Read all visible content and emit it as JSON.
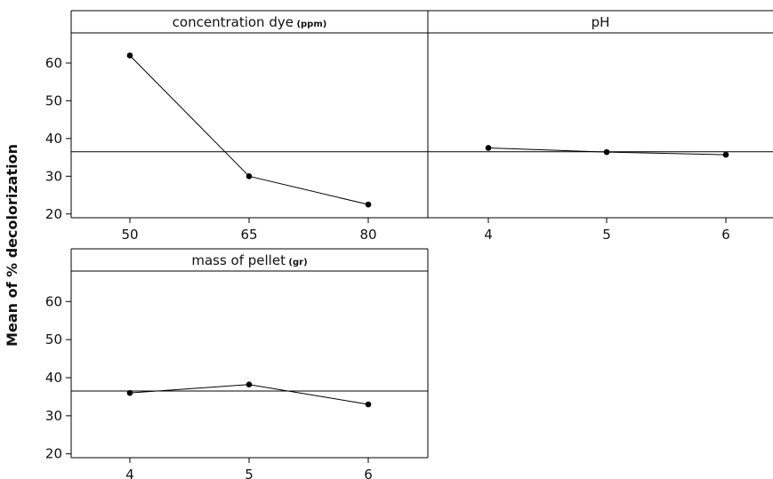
{
  "chart_data": {
    "type": "line",
    "ylabel": "Mean of % decolorization",
    "ylim": [
      19,
      68
    ],
    "yticks": [
      20,
      30,
      40,
      50,
      60
    ],
    "grand_mean": 36.5,
    "panels": [
      {
        "title": "concentration dye",
        "unit": "(ppm)",
        "categories": [
          "50",
          "65",
          "80"
        ],
        "values": [
          62,
          30,
          22.5
        ]
      },
      {
        "title": "pH",
        "unit": "",
        "categories": [
          "4",
          "5",
          "6"
        ],
        "values": [
          37.5,
          36.4,
          35.7
        ]
      },
      {
        "title": "mass of pellet",
        "unit": "(gr)",
        "categories": [
          "4",
          "5",
          "6"
        ],
        "values": [
          36,
          38.2,
          33
        ]
      }
    ]
  }
}
